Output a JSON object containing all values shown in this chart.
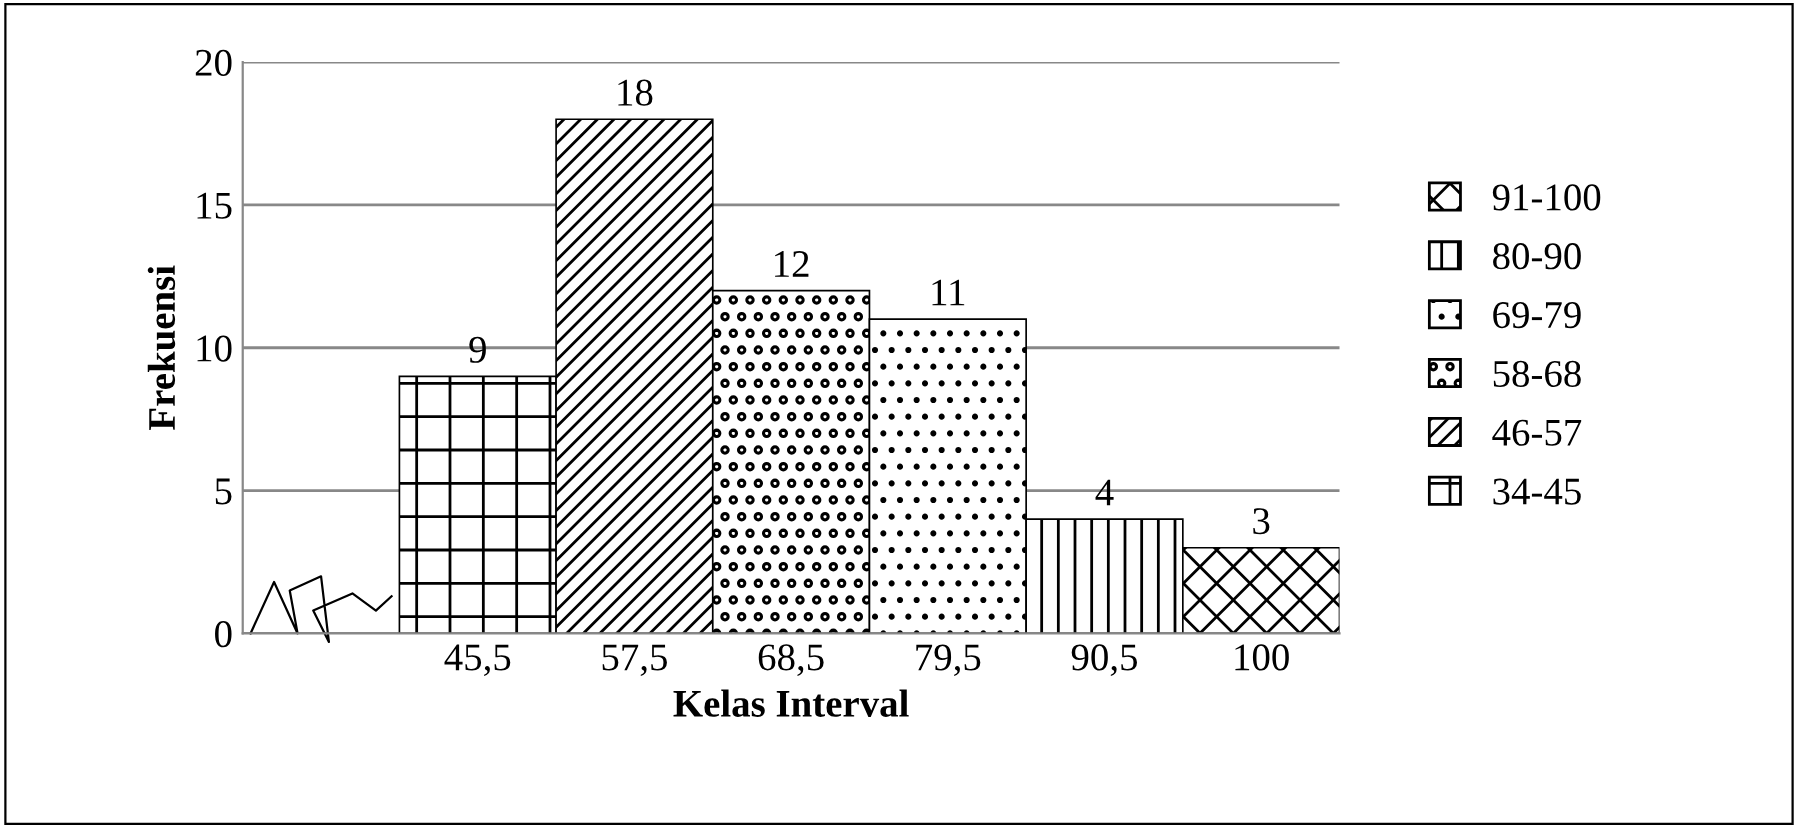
{
  "chart_data": {
    "type": "bar",
    "xlabel": "Kelas Interval",
    "ylabel": "Frekuensi",
    "categories": [
      null,
      "45,5",
      "57,5",
      "68,5",
      "79,5",
      "90,5",
      "100"
    ],
    "series": [
      {
        "name": "34-45",
        "color": "#000000",
        "values": [
          null,
          9,
          null,
          null,
          null,
          null,
          null
        ]
      },
      {
        "name": "46-57",
        "color": "#000000",
        "values": [
          null,
          null,
          18,
          null,
          null,
          null,
          null
        ]
      },
      {
        "name": "58-68",
        "color": "#000000",
        "values": [
          null,
          null,
          null,
          12,
          null,
          null,
          null
        ]
      },
      {
        "name": "69-79",
        "color": "#000000",
        "values": [
          null,
          null,
          null,
          null,
          11,
          null,
          null
        ]
      },
      {
        "name": "80-90",
        "color": "#000000",
        "values": [
          null,
          null,
          null,
          null,
          null,
          4,
          null
        ]
      },
      {
        "name": "91-100",
        "color": "#000000",
        "values": [
          null,
          null,
          null,
          null,
          null,
          null,
          3
        ]
      }
    ],
    "ylim": [
      0,
      20
    ],
    "yticks": [
      0,
      5,
      10,
      15,
      20
    ],
    "grid": "y",
    "legend": "right",
    "data_labels": true
  }
}
